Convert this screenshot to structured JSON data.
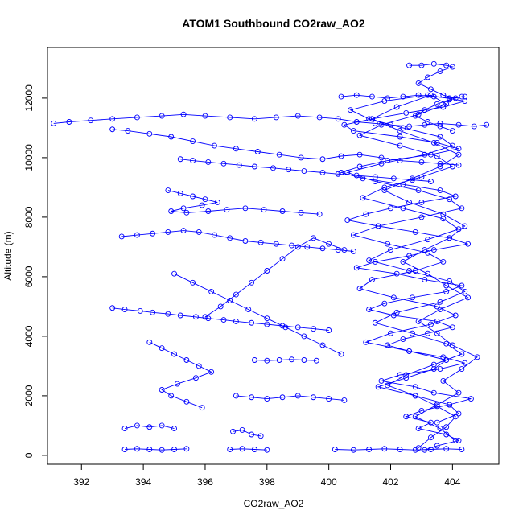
{
  "chart_data": {
    "type": "scatter",
    "title": "ATOM1 Southbound CO2raw_AO2",
    "xlabel": "CO2raw_AO2",
    "ylabel": "Altitude (m)",
    "xlim": [
      390.9,
      405.5
    ],
    "ylim": [
      -300,
      13700
    ],
    "xticks": [
      392,
      394,
      396,
      398,
      400,
      402,
      404
    ],
    "yticks": [
      0,
      2000,
      4000,
      6000,
      8000,
      10000,
      12000
    ],
    "grid": false,
    "legend": "none",
    "point_style": "open-circle",
    "connect_points": true,
    "colors": {
      "series": "#0000ff",
      "axis": "#000000",
      "background": "#ffffff"
    },
    "series": [
      {
        "x": [
          403.1,
          403.5,
          404.2,
          403.8,
          402.9,
          403.3,
          402.5,
          403.0,
          403.9,
          404.6,
          403.4,
          402.8,
          401.7,
          402.3,
          403.6,
          404.4,
          403.7,
          402.6,
          401.9,
          402.4,
          403.2,
          404.0,
          403.5,
          402.1,
          401.3,
          401.8,
          402.7,
          403.8,
          404.3,
          403.1,
          402.2,
          400.9,
          401.5,
          402.6,
          403.4,
          404.5,
          403.9,
          402.8,
          401.6,
          400.6,
          401.2,
          402.0,
          403.0,
          404.1,
          403.6,
          402.4,
          401.1,
          400.4,
          401.0,
          401.9,
          403.3,
          404.2,
          403.5,
          402.3,
          400.8,
          400.5,
          401.4,
          402.5,
          403.7,
          404.4,
          403.2,
          401.8,
          400.7,
          401.3,
          402.4,
          403.6,
          404.0,
          403.1,
          401.7,
          400.6,
          401.5,
          402.9,
          403.9,
          404.3,
          403.0,
          401.6,
          400.8,
          401.9,
          403.2,
          403.7,
          402.8,
          401.4,
          401.0,
          402.1,
          403.5,
          404.1,
          403.3,
          402.0,
          401.2,
          402.6,
          403.8,
          403.4,
          402.5,
          401.6,
          402.8,
          403.9,
          404.2,
          403.5
        ],
        "y": [
          180,
          320,
          500,
          700,
          900,
          1100,
          1300,
          1500,
          1700,
          1900,
          2100,
          2300,
          2500,
          2700,
          2900,
          3100,
          3300,
          3500,
          3700,
          3900,
          4100,
          4300,
          4500,
          4700,
          4900,
          5100,
          5300,
          5500,
          5700,
          5900,
          6100,
          6300,
          6500,
          6700,
          6900,
          7100,
          7300,
          7500,
          7700,
          7900,
          8100,
          8300,
          8500,
          8700,
          8900,
          9100,
          9300,
          9500,
          9700,
          9900,
          10100,
          10300,
          10500,
          10700,
          10900,
          11100,
          11300,
          11500,
          11700,
          11900,
          12100,
          11900,
          11600,
          11300,
          11000,
          10700,
          10400,
          10100,
          9800,
          9500,
          9200,
          8900,
          8600,
          8300,
          8000,
          7700,
          7400,
          7100,
          6800,
          6500,
          6200,
          5900,
          5600,
          5300,
          5000,
          4700,
          4400,
          4100,
          3800,
          3500,
          3200,
          2900,
          2600,
          2300,
          2000,
          1700,
          1400,
          1100
        ]
      },
      {
        "x": [
          402.9,
          403.3,
          403.8,
          404.1,
          403.5,
          402.8,
          401.9,
          402.5,
          403.4,
          404.3,
          403.8,
          402.7,
          401.5,
          402.2,
          403.6,
          404.4,
          403.9,
          402.6,
          401.3,
          402.0,
          403.2,
          404.2,
          403.7,
          402.4,
          401.1,
          401.8,
          403.0,
          404.0,
          403.5,
          402.3,
          401.0,
          401.7,
          402.9,
          403.8,
          403.3,
          402.2,
          401.4,
          402.3,
          403.4,
          404.2,
          403.6,
          402.7,
          401.8,
          402.6,
          403.7,
          404.4,
          403.9,
          403.1,
          402.4,
          403.2,
          403.8,
          404.5,
          403.6,
          402.9,
          403.5,
          404.0,
          404.8,
          404.3,
          403.7,
          404.2,
          403.5,
          402.8,
          403.6,
          404.1
        ],
        "y": [
          250,
          600,
          950,
          1300,
          1650,
          2000,
          2350,
          2700,
          3050,
          3400,
          3750,
          4100,
          4450,
          4800,
          5150,
          5500,
          5850,
          6200,
          6550,
          6900,
          7250,
          7600,
          7950,
          8300,
          8650,
          9000,
          9350,
          9700,
          10050,
          10400,
          10750,
          11100,
          11450,
          11800,
          12100,
          11700,
          11300,
          10900,
          10500,
          10100,
          9700,
          9300,
          8900,
          8500,
          8100,
          7700,
          7300,
          6900,
          6500,
          6100,
          5700,
          5300,
          4900,
          4500,
          4100,
          3700,
          3300,
          2900,
          2500,
          2100,
          1700,
          1300,
          900,
          500
        ]
      },
      {
        "x": [
          402.6,
          403.0,
          403.4,
          403.8,
          404.0,
          403.6,
          403.2,
          402.9,
          403.3,
          403.7,
          404.1,
          404.3,
          403.9,
          403.5,
          403.1,
          402.8,
          403.2,
          403.6,
          404.0
        ],
        "y": [
          13100,
          13100,
          13150,
          13100,
          13050,
          12900,
          12700,
          12500,
          12300,
          12100,
          12000,
          12050,
          11950,
          11800,
          11600,
          11400,
          11200,
          11050,
          10900
        ]
      },
      {
        "x": [
          391.1,
          391.6,
          392.3,
          393.0,
          393.8,
          394.6,
          395.3,
          396.0,
          396.8,
          397.6,
          398.3,
          399.0,
          399.7,
          400.3,
          400.9,
          401.5,
          402.0,
          402.6,
          403.1,
          403.6,
          404.2,
          404.7,
          405.1
        ],
        "y": [
          11150,
          11200,
          11250,
          11300,
          11350,
          11400,
          11450,
          11400,
          11350,
          11300,
          11350,
          11400,
          11350,
          11300,
          11200,
          11150,
          11100,
          11050,
          11100,
          11150,
          11100,
          11050,
          11100
        ]
      },
      {
        "x": [
          393.0,
          393.5,
          394.2,
          394.9,
          395.6,
          396.3,
          397.0,
          397.7,
          398.4,
          399.1,
          399.8,
          400.4,
          401.0,
          401.7,
          402.3,
          403.0,
          403.6,
          404.2
        ],
        "y": [
          10950,
          10900,
          10800,
          10700,
          10550,
          10400,
          10300,
          10200,
          10100,
          10000,
          9950,
          10050,
          10100,
          10000,
          9900,
          9850,
          9800,
          9750
        ]
      },
      {
        "x": [
          395.2,
          395.6,
          396.1,
          396.6,
          397.1,
          397.6,
          398.2,
          398.7,
          399.2,
          399.8,
          400.3,
          400.9,
          401.5,
          402.1,
          402.7,
          403.3
        ],
        "y": [
          9950,
          9900,
          9850,
          9800,
          9750,
          9700,
          9650,
          9600,
          9550,
          9500,
          9450,
          9400,
          9350,
          9300,
          9250,
          9200
        ]
      },
      {
        "x": [
          394.8,
          395.2,
          395.6,
          396.0,
          396.4,
          395.9,
          395.3,
          394.9,
          395.4,
          396.1,
          396.7,
          397.3,
          397.9,
          398.5,
          399.1,
          399.7
        ],
        "y": [
          8900,
          8800,
          8700,
          8600,
          8500,
          8400,
          8300,
          8200,
          8150,
          8200,
          8250,
          8300,
          8250,
          8200,
          8150,
          8100
        ]
      },
      {
        "x": [
          393.3,
          393.8,
          394.3,
          394.8,
          395.3,
          395.8,
          396.3,
          396.8,
          397.3,
          397.8,
          398.3,
          398.8,
          399.3,
          399.8,
          400.3,
          400.8
        ],
        "y": [
          7350,
          7400,
          7450,
          7500,
          7550,
          7500,
          7400,
          7300,
          7200,
          7150,
          7100,
          7050,
          7000,
          6950,
          6900,
          6850
        ]
      },
      {
        "x": [
          393.0,
          393.4,
          393.9,
          394.3,
          394.8,
          395.2,
          395.7,
          396.1,
          396.6,
          397.0,
          397.5,
          398.0,
          398.5,
          399.0,
          399.5,
          400.0
        ],
        "y": [
          4950,
          4900,
          4850,
          4800,
          4750,
          4700,
          4650,
          4600,
          4550,
          4500,
          4450,
          4400,
          4350,
          4300,
          4250,
          4200
        ]
      },
      {
        "x": [
          396.0,
          396.5,
          397.0,
          397.5,
          398.0,
          398.5,
          399.0,
          399.5,
          400.0,
          400.5
        ],
        "y": [
          4650,
          5000,
          5400,
          5800,
          6200,
          6600,
          7000,
          7300,
          7100,
          6900
        ]
      },
      {
        "x": [
          395.0,
          395.6,
          396.2,
          396.8,
          397.4,
          398.0,
          398.6,
          399.2,
          399.8,
          400.4
        ],
        "y": [
          6100,
          5800,
          5500,
          5200,
          4900,
          4600,
          4300,
          4000,
          3700,
          3400
        ]
      },
      {
        "x": [
          394.2,
          394.6,
          395.0,
          395.4,
          395.8,
          396.2,
          395.7,
          395.1,
          394.6,
          394.9,
          395.4,
          395.9
        ],
        "y": [
          3800,
          3600,
          3400,
          3200,
          3000,
          2800,
          2600,
          2400,
          2200,
          2000,
          1800,
          1600
        ]
      },
      {
        "x": [
          397.6,
          398.0,
          398.4,
          398.8,
          399.2,
          399.6
        ],
        "y": [
          3200,
          3180,
          3200,
          3220,
          3200,
          3180
        ]
      },
      {
        "x": [
          397.0,
          397.5,
          398.0,
          398.5,
          399.0,
          399.5,
          400.0,
          400.5
        ],
        "y": [
          2000,
          1950,
          1900,
          1950,
          2000,
          1950,
          1900,
          1850
        ]
      },
      {
        "x": [
          393.4,
          393.8,
          394.2,
          394.6,
          395.0,
          395.4
        ],
        "y": [
          200,
          220,
          200,
          180,
          200,
          220
        ]
      },
      {
        "x": [
          393.4,
          393.8,
          394.2,
          394.6,
          395.0
        ],
        "y": [
          900,
          1000,
          950,
          1000,
          900
        ]
      },
      {
        "x": [
          396.8,
          397.2,
          397.6,
          398.0
        ],
        "y": [
          200,
          220,
          200,
          180
        ]
      },
      {
        "x": [
          396.9,
          397.2,
          397.5,
          397.8
        ],
        "y": [
          800,
          850,
          700,
          650
        ]
      },
      {
        "x": [
          400.2,
          400.8,
          401.3,
          401.8,
          402.3,
          402.8,
          403.3,
          403.8,
          404.3
        ],
        "y": [
          200,
          180,
          200,
          220,
          200,
          180,
          200,
          220,
          200
        ]
      },
      {
        "x": [
          400.4,
          400.9,
          401.4,
          401.9,
          402.4,
          402.9,
          403.4,
          403.9,
          404.4
        ],
        "y": [
          12050,
          12100,
          12050,
          12000,
          12050,
          12100,
          12050,
          12000,
          12050
        ]
      }
    ]
  }
}
